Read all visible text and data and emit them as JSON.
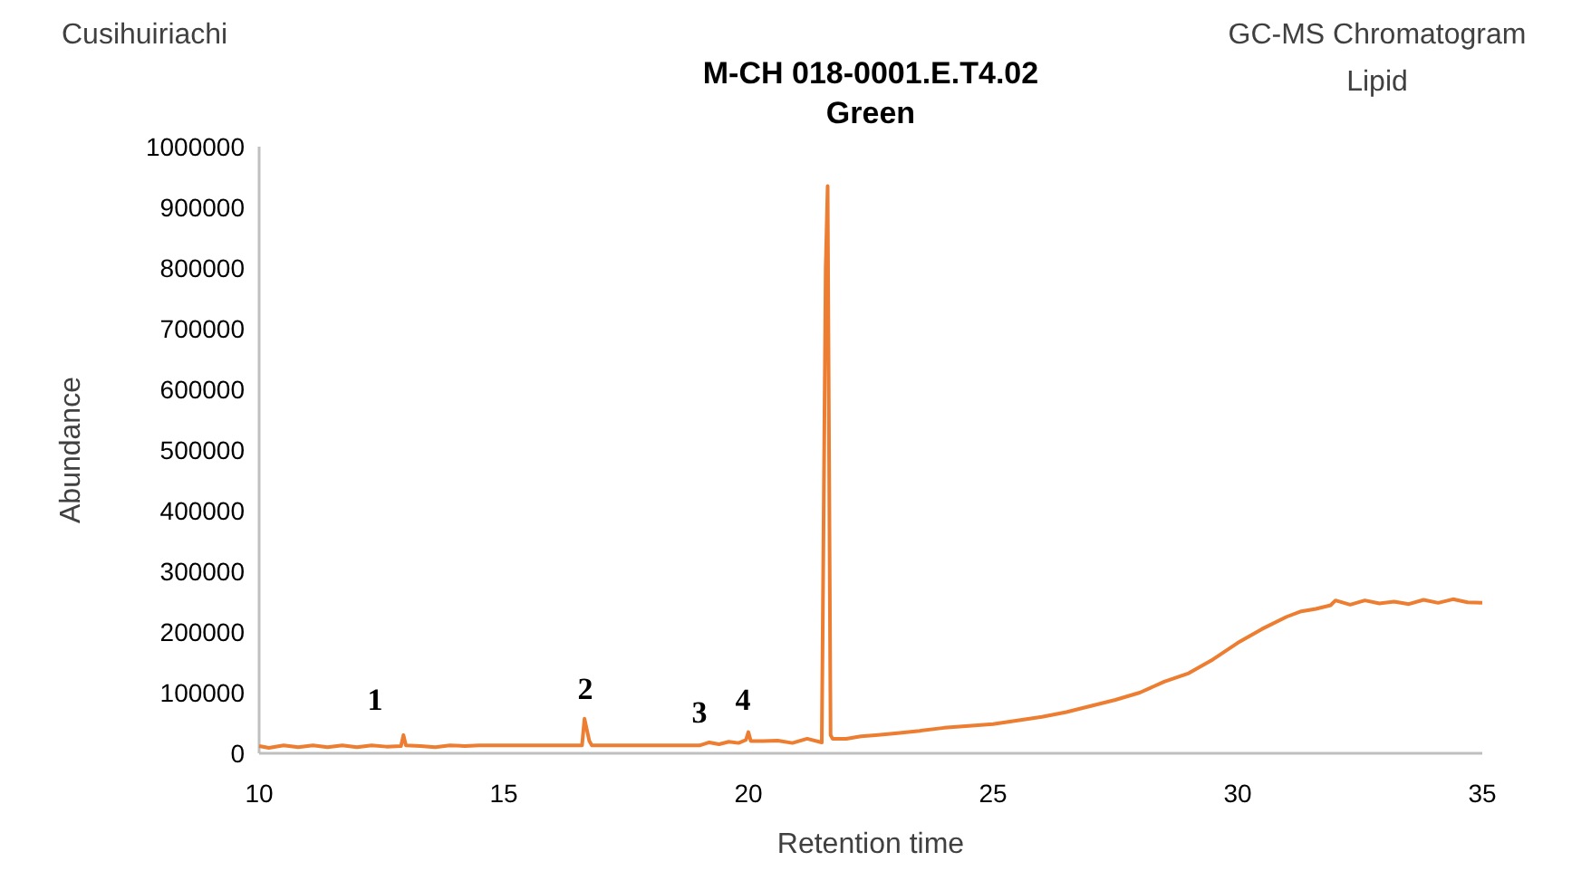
{
  "chart_data": {
    "type": "line",
    "title": "M-CH 018-0001.E.T4.02",
    "subtitle": "Green",
    "xlabel": "Retention time",
    "ylabel": "Abundance",
    "annotations": [
      "Cusihuiriachi",
      "GC-MS Chromatogram",
      "Lipid",
      "1",
      "2",
      "3",
      "4"
    ],
    "xlim": [
      10,
      35
    ],
    "xticks": [
      10,
      15,
      20,
      25,
      30,
      35
    ],
    "ylim": [
      0,
      1000000
    ],
    "yticks": [
      0,
      100000,
      200000,
      300000,
      400000,
      500000,
      600000,
      700000,
      800000,
      900000,
      1000000
    ],
    "grid": false,
    "series": [
      {
        "color": "#ed7d31",
        "x": [
          10,
          10.2,
          10.5,
          10.8,
          11.1,
          11.4,
          11.7,
          12.0,
          12.3,
          12.6,
          12.9,
          12.95,
          13.0,
          13.3,
          13.6,
          13.9,
          14.2,
          14.5,
          15.0,
          15.5,
          16.0,
          16.5,
          16.6,
          16.65,
          16.75,
          16.8,
          17.5,
          18.0,
          18.5,
          19.0,
          19.2,
          19.4,
          19.6,
          19.8,
          19.95,
          20.0,
          20.05,
          20.3,
          20.6,
          20.9,
          21.2,
          21.5,
          21.58,
          21.62,
          21.68,
          21.72,
          22.0,
          22.3,
          22.6,
          23.0,
          23.5,
          24.0,
          24.5,
          25.0,
          25.5,
          26.0,
          26.5,
          26.7,
          27.0,
          27.5,
          28.0,
          28.5,
          29.0,
          29.5,
          30.0,
          30.5,
          31.0,
          31.3,
          31.6,
          31.9,
          32.0,
          32.3,
          32.6,
          32.9,
          33.2,
          33.5,
          33.8,
          34.1,
          34.4,
          34.7,
          35.0
        ],
        "values": [
          12000,
          9000,
          13000,
          10000,
          13000,
          10000,
          13000,
          10000,
          13000,
          11000,
          12000,
          30000,
          13000,
          12000,
          10000,
          13000,
          12000,
          13000,
          13000,
          13000,
          13000,
          13000,
          13000,
          57000,
          20000,
          13000,
          13000,
          13000,
          13000,
          13000,
          18000,
          15000,
          19000,
          17000,
          22000,
          35000,
          20000,
          20000,
          21000,
          17000,
          24000,
          18000,
          800000,
          935000,
          30000,
          24000,
          24000,
          28000,
          30000,
          33000,
          37000,
          42000,
          45000,
          48000,
          54000,
          60000,
          68000,
          72000,
          78000,
          88000,
          100000,
          118000,
          132000,
          155000,
          182000,
          205000,
          225000,
          234000,
          238000,
          244000,
          252000,
          245000,
          252000,
          247000,
          250000,
          246000,
          253000,
          248000,
          254000,
          249000,
          248000
        ]
      }
    ]
  }
}
